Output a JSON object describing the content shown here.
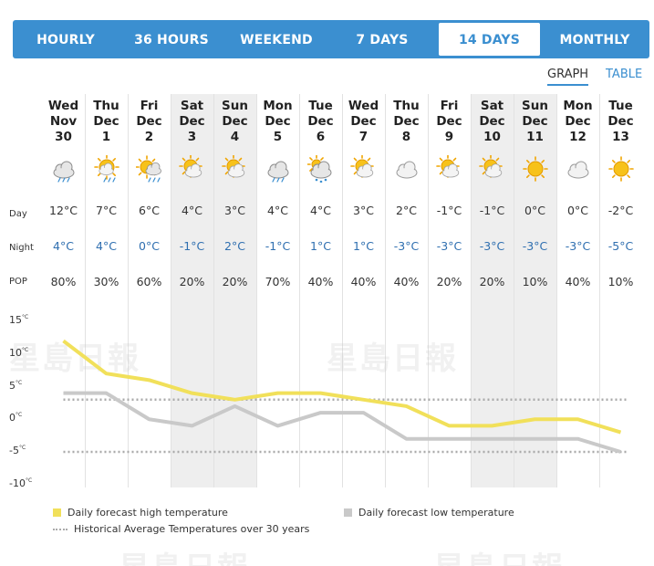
{
  "tabs": [
    {
      "label": "HOURLY",
      "active": false
    },
    {
      "label": "36 HOURS",
      "active": false
    },
    {
      "label": "WEEKEND",
      "active": false
    },
    {
      "label": "7 DAYS",
      "active": false
    },
    {
      "label": "14 DAYS",
      "active": true
    },
    {
      "label": "MONTHLY",
      "active": false
    }
  ],
  "view_toggle": {
    "graph": "GRAPH",
    "table": "TABLE",
    "selected": "GRAPH"
  },
  "row_labels": {
    "day": "Day",
    "night": "Night",
    "pop": "POP"
  },
  "days": [
    {
      "weekday": "Wed",
      "month": "Nov",
      "date": "30",
      "day_temp": "12°C",
      "night_temp": "4°C",
      "pop": "80%",
      "icon": "rain-cloud-icon",
      "weekend": false
    },
    {
      "weekday": "Thu",
      "month": "Dec",
      "date": "1",
      "day_temp": "7°C",
      "night_temp": "4°C",
      "pop": "30%",
      "icon": "sun-rain-icon",
      "weekend": false
    },
    {
      "weekday": "Fri",
      "month": "Dec",
      "date": "2",
      "day_temp": "6°C",
      "night_temp": "0°C",
      "pop": "60%",
      "icon": "sun-rain-cloud-icon",
      "weekend": false
    },
    {
      "weekday": "Sat",
      "month": "Dec",
      "date": "3",
      "day_temp": "4°C",
      "night_temp": "-1°C",
      "pop": "20%",
      "icon": "sun-cloud-icon",
      "weekend": true
    },
    {
      "weekday": "Sun",
      "month": "Dec",
      "date": "4",
      "day_temp": "3°C",
      "night_temp": "2°C",
      "pop": "20%",
      "icon": "sun-cloud-icon",
      "weekend": true
    },
    {
      "weekday": "Mon",
      "month": "Dec",
      "date": "5",
      "day_temp": "4°C",
      "night_temp": "-1°C",
      "pop": "70%",
      "icon": "rain-cloud-icon",
      "weekend": false
    },
    {
      "weekday": "Tue",
      "month": "Dec",
      "date": "6",
      "day_temp": "4°C",
      "night_temp": "1°C",
      "pop": "40%",
      "icon": "snow-rain-icon",
      "weekend": false
    },
    {
      "weekday": "Wed",
      "month": "Dec",
      "date": "7",
      "day_temp": "3°C",
      "night_temp": "1°C",
      "pop": "40%",
      "icon": "sun-cloud-icon",
      "weekend": false
    },
    {
      "weekday": "Thu",
      "month": "Dec",
      "date": "8",
      "day_temp": "2°C",
      "night_temp": "-3°C",
      "pop": "40%",
      "icon": "cloud-icon",
      "weekend": false
    },
    {
      "weekday": "Fri",
      "month": "Dec",
      "date": "9",
      "day_temp": "-1°C",
      "night_temp": "-3°C",
      "pop": "20%",
      "icon": "sun-cloud-icon",
      "weekend": false
    },
    {
      "weekday": "Sat",
      "month": "Dec",
      "date": "10",
      "day_temp": "-1°C",
      "night_temp": "-3°C",
      "pop": "20%",
      "icon": "sun-cloud-icon",
      "weekend": true
    },
    {
      "weekday": "Sun",
      "month": "Dec",
      "date": "11",
      "day_temp": "0°C",
      "night_temp": "-3°C",
      "pop": "10%",
      "icon": "sun-icon",
      "weekend": true
    },
    {
      "weekday": "Mon",
      "month": "Dec",
      "date": "12",
      "day_temp": "0°C",
      "night_temp": "-3°C",
      "pop": "40%",
      "icon": "cloud-icon",
      "weekend": false
    },
    {
      "weekday": "Tue",
      "month": "Dec",
      "date": "13",
      "day_temp": "-2°C",
      "night_temp": "-5°C",
      "pop": "10%",
      "icon": "sun-icon",
      "weekend": false
    }
  ],
  "chart_data": {
    "type": "line",
    "x": [
      "Wed Nov 30",
      "Thu Dec 1",
      "Fri Dec 2",
      "Sat Dec 3",
      "Sun Dec 4",
      "Mon Dec 5",
      "Tue Dec 6",
      "Wed Dec 7",
      "Thu Dec 8",
      "Fri Dec 9",
      "Sat Dec 10",
      "Sun Dec 11",
      "Mon Dec 12",
      "Tue Dec 13"
    ],
    "series": [
      {
        "name": "Daily forecast high temperature",
        "color": "#f1e05a",
        "values": [
          12,
          7,
          6,
          4,
          3,
          4,
          4,
          3,
          2,
          -1,
          -1,
          0,
          0,
          -2
        ]
      },
      {
        "name": "Daily forecast low temperature",
        "color": "#c9c9c9",
        "values": [
          4,
          4,
          0,
          -1,
          2,
          -1,
          1,
          1,
          -3,
          -3,
          -3,
          -3,
          -3,
          -5
        ]
      },
      {
        "name": "Historical Average Temperatures over 30 years",
        "style": "dotted",
        "color": "#aaaaaa",
        "values_high": 3,
        "values_low": -5
      }
    ],
    "y_ticks": [
      "15",
      "10",
      "5",
      "0",
      "-5",
      "-10"
    ],
    "y_unit": "°C",
    "ylim": [
      -10,
      15
    ],
    "grid": false
  },
  "legend": {
    "high": "Daily forecast high temperature",
    "low": "Daily forecast low temperature",
    "avg": "Historical Average Temperatures over 30 years"
  },
  "colors": {
    "accent": "#3b8fd0",
    "high_line": "#f1e05a",
    "low_line": "#c9c9c9",
    "night_text": "#2f6fb0"
  }
}
